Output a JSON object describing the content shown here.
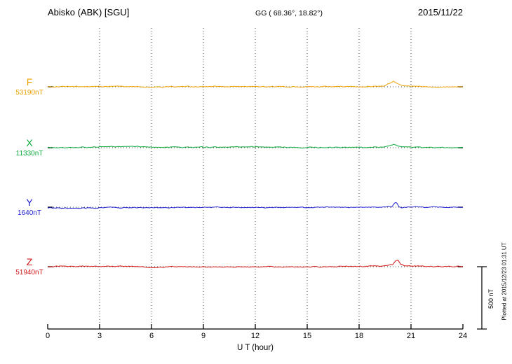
{
  "header": {
    "station": "Abisko (ABK)  [SGU]",
    "coords": "GG ( 68.36°,  18.82°)",
    "date": "2015/11/22"
  },
  "axis": {
    "x_label": "U T (hour)",
    "x_ticks": [
      "0",
      "3",
      "6",
      "9",
      "12",
      "15",
      "18",
      "21",
      "24"
    ]
  },
  "scale_bar": {
    "label": "500 nT",
    "nT": 500
  },
  "side_note": "Plotted at 2015/12/23 01:31 UT",
  "chart_data": {
    "type": "line",
    "title": "Magnetogram Abisko (ABK) [SGU] 2015/11/22",
    "x_unit": "hour UT",
    "x_range": [
      0,
      24
    ],
    "grid": "dotted vertical every 3 h, dotted baseline per component",
    "scale": "500 nT reference bar at right",
    "series": [
      {
        "name": "F",
        "color": "#eda203",
        "baseline_label": "53190nT",
        "baseline_nT": 53190,
        "noise_nT": 4,
        "points": [
          [
            0,
            0
          ],
          [
            1,
            1
          ],
          [
            2,
            2
          ],
          [
            3,
            1
          ],
          [
            4,
            3
          ],
          [
            5,
            2
          ],
          [
            5.8,
            -3
          ],
          [
            6.2,
            -1
          ],
          [
            7,
            1
          ],
          [
            8,
            2
          ],
          [
            9,
            1
          ],
          [
            10,
            1
          ],
          [
            11,
            2
          ],
          [
            12,
            2
          ],
          [
            13,
            1
          ],
          [
            14,
            1
          ],
          [
            15,
            0
          ],
          [
            16,
            1
          ],
          [
            17,
            1
          ],
          [
            18,
            2
          ],
          [
            19,
            3
          ],
          [
            19.4,
            6
          ],
          [
            19.8,
            30
          ],
          [
            20.0,
            45
          ],
          [
            20.2,
            28
          ],
          [
            20.5,
            10
          ],
          [
            20.9,
            4
          ],
          [
            21.5,
            2
          ],
          [
            22,
            1
          ],
          [
            23,
            1
          ],
          [
            24,
            1
          ]
        ]
      },
      {
        "name": "X",
        "color": "#0caa3c",
        "baseline_label": "11330nT",
        "baseline_nT": 11330,
        "noise_nT": 4,
        "points": [
          [
            0,
            0
          ],
          [
            1,
            1
          ],
          [
            2,
            2
          ],
          [
            3,
            6
          ],
          [
            3.5,
            8
          ],
          [
            4,
            9
          ],
          [
            4.5,
            10
          ],
          [
            5,
            9
          ],
          [
            5.5,
            8
          ],
          [
            6,
            6
          ],
          [
            6.3,
            3
          ],
          [
            7,
            4
          ],
          [
            8,
            5
          ],
          [
            9,
            4
          ],
          [
            10,
            4
          ],
          [
            11,
            5
          ],
          [
            12,
            5
          ],
          [
            13,
            4
          ],
          [
            14,
            3
          ],
          [
            15,
            2
          ],
          [
            16,
            2
          ],
          [
            17,
            2
          ],
          [
            18,
            3
          ],
          [
            19,
            4
          ],
          [
            19.5,
            6
          ],
          [
            19.8,
            18
          ],
          [
            20.0,
            30
          ],
          [
            20.2,
            18
          ],
          [
            20.5,
            8
          ],
          [
            21,
            4
          ],
          [
            22,
            2
          ],
          [
            23,
            1
          ],
          [
            24,
            0
          ]
        ]
      },
      {
        "name": "Y",
        "color": "#1f1fd0",
        "baseline_label": "1640nT",
        "baseline_nT": 1640,
        "noise_nT": 4,
        "points": [
          [
            0,
            -6
          ],
          [
            0.5,
            -8
          ],
          [
            1,
            -9
          ],
          [
            1.5,
            -8
          ],
          [
            2,
            -6
          ],
          [
            3,
            -4
          ],
          [
            4,
            -3
          ],
          [
            5,
            -4
          ],
          [
            6,
            -5
          ],
          [
            7,
            -3
          ],
          [
            8,
            -2
          ],
          [
            9,
            -2
          ],
          [
            10,
            -1
          ],
          [
            11,
            -2
          ],
          [
            12,
            -3
          ],
          [
            13,
            -2
          ],
          [
            14,
            -1
          ],
          [
            15,
            -1
          ],
          [
            16,
            0
          ],
          [
            17,
            0
          ],
          [
            18,
            0
          ],
          [
            19,
            1
          ],
          [
            19.5,
            2
          ],
          [
            19.9,
            5
          ],
          [
            20.05,
            35
          ],
          [
            20.15,
            38
          ],
          [
            20.3,
            5
          ],
          [
            20.45,
            -6
          ],
          [
            20.7,
            0
          ],
          [
            21,
            1
          ],
          [
            22,
            0
          ],
          [
            23,
            0
          ],
          [
            24,
            0
          ]
        ]
      },
      {
        "name": "Z",
        "color": "#d31616",
        "baseline_label": "51940nT",
        "baseline_nT": 51940,
        "noise_nT": 4,
        "points": [
          [
            0,
            2
          ],
          [
            1,
            2
          ],
          [
            2,
            3
          ],
          [
            3,
            3
          ],
          [
            4,
            4
          ],
          [
            5,
            2
          ],
          [
            5.8,
            -4
          ],
          [
            6.1,
            -8
          ],
          [
            6.4,
            -4
          ],
          [
            7,
            -1
          ],
          [
            8,
            0
          ],
          [
            9,
            -1
          ],
          [
            10,
            -2
          ],
          [
            11,
            -1
          ],
          [
            12,
            0
          ],
          [
            13,
            -1
          ],
          [
            14,
            -2
          ],
          [
            15,
            -1
          ],
          [
            16,
            0
          ],
          [
            17,
            1
          ],
          [
            18,
            2
          ],
          [
            18.8,
            4
          ],
          [
            19.3,
            8
          ],
          [
            19.7,
            12
          ],
          [
            19.95,
            18
          ],
          [
            20.1,
            50
          ],
          [
            20.25,
            55
          ],
          [
            20.4,
            20
          ],
          [
            20.6,
            10
          ],
          [
            21,
            5
          ],
          [
            21.5,
            3
          ],
          [
            22,
            2
          ],
          [
            23,
            2
          ],
          [
            24,
            2
          ]
        ]
      }
    ]
  }
}
